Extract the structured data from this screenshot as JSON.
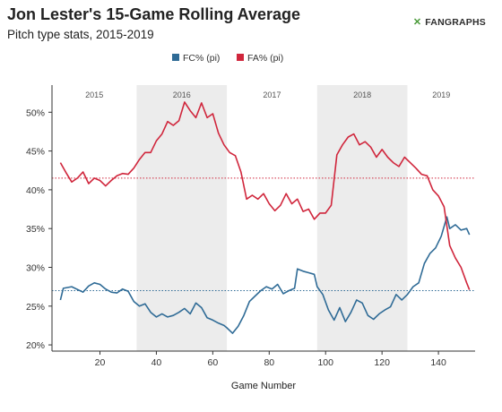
{
  "header": {
    "title": "Jon Lester's 15-Game Rolling Average",
    "subtitle": "Pitch type stats, 2015-2019",
    "logo_mark": "✕",
    "logo_prefix": "",
    "logo_text": "FANGRAPHS"
  },
  "chart_data": {
    "type": "line",
    "title": "Jon Lester's 15-Game Rolling Average",
    "subtitle": "Pitch type stats, 2015-2019",
    "xlabel": "Game Number",
    "ylabel": "",
    "xlim": [
      3,
      153
    ],
    "ylim": [
      19.2,
      53.5
    ],
    "x_ticks": [
      20,
      40,
      60,
      80,
      100,
      120,
      140
    ],
    "y_ticks": [
      20,
      25,
      30,
      35,
      40,
      45,
      50
    ],
    "y_tick_format": "percent",
    "grid": false,
    "legend_position": "top-center",
    "seasons": [
      {
        "label": "2015",
        "start": 3,
        "end": 33,
        "shaded": false
      },
      {
        "label": "2016",
        "start": 33,
        "end": 65,
        "shaded": true
      },
      {
        "label": "2017",
        "start": 65,
        "end": 97,
        "shaded": false
      },
      {
        "label": "2018",
        "start": 97,
        "end": 129,
        "shaded": true
      },
      {
        "label": "2019",
        "start": 129,
        "end": 153,
        "shaded": false
      }
    ],
    "reference_lines": [
      {
        "series": "FA% (pi)",
        "value": 41.5,
        "color": "#d0263c"
      },
      {
        "series": "FC% (pi)",
        "value": 27.0,
        "color": "#2f6b96"
      }
    ],
    "series": [
      {
        "name": "FC% (pi)",
        "color": "#2f6b96",
        "x": [
          6,
          7,
          10,
          14,
          16,
          18,
          20,
          22,
          24,
          26,
          28,
          30,
          32,
          34,
          36,
          38,
          40,
          42,
          44,
          46,
          48,
          50,
          52,
          54,
          56,
          58,
          60,
          62,
          64,
          65,
          67,
          69,
          71,
          73,
          75,
          77,
          79,
          81,
          83,
          85,
          87,
          89,
          90,
          92,
          94,
          96,
          97,
          99,
          101,
          103,
          105,
          107,
          109,
          111,
          113,
          115,
          117,
          119,
          121,
          123,
          125,
          127,
          129,
          131,
          133,
          135,
          137,
          139,
          141,
          143,
          144,
          146,
          148,
          150,
          151
        ],
        "values": [
          25.8,
          27.3,
          27.5,
          26.8,
          27.6,
          28.0,
          27.8,
          27.2,
          26.8,
          26.7,
          27.2,
          26.9,
          25.6,
          25.0,
          25.3,
          24.2,
          23.6,
          24.0,
          23.6,
          23.8,
          24.2,
          24.7,
          24.0,
          25.4,
          24.8,
          23.5,
          23.2,
          22.8,
          22.5,
          22.2,
          21.5,
          22.4,
          23.8,
          25.6,
          26.3,
          27.0,
          27.5,
          27.2,
          27.8,
          26.6,
          27.0,
          27.3,
          29.8,
          29.5,
          29.3,
          29.1,
          27.5,
          26.5,
          24.5,
          23.2,
          24.8,
          23.0,
          24.2,
          25.8,
          25.4,
          23.8,
          23.3,
          24.0,
          24.5,
          24.9,
          26.5,
          25.8,
          26.5,
          27.5,
          28.0,
          30.5,
          31.8,
          32.5,
          34.0,
          36.5,
          35.0,
          35.5,
          34.8,
          35.0,
          34.2
        ]
      },
      {
        "name": "FA% (pi)",
        "color": "#d0263c",
        "x": [
          6,
          8,
          10,
          12,
          14,
          16,
          18,
          20,
          22,
          24,
          26,
          28,
          30,
          32,
          34,
          36,
          38,
          40,
          42,
          44,
          46,
          48,
          50,
          52,
          54,
          56,
          58,
          60,
          62,
          64,
          66,
          68,
          70,
          72,
          74,
          76,
          78,
          80,
          82,
          84,
          86,
          88,
          90,
          92,
          94,
          96,
          98,
          100,
          102,
          104,
          106,
          108,
          110,
          112,
          114,
          116,
          118,
          120,
          122,
          124,
          126,
          128,
          130,
          132,
          134,
          136,
          138,
          140,
          142,
          144,
          146,
          148,
          150,
          151
        ],
        "values": [
          43.5,
          42.2,
          41.0,
          41.5,
          42.3,
          40.8,
          41.5,
          41.2,
          40.5,
          41.2,
          41.8,
          42.1,
          42.0,
          42.8,
          43.9,
          44.8,
          44.8,
          46.3,
          47.2,
          48.8,
          48.3,
          48.9,
          51.3,
          50.2,
          49.3,
          51.2,
          49.3,
          49.8,
          47.3,
          45.8,
          44.8,
          44.4,
          42.3,
          38.8,
          39.3,
          38.8,
          39.5,
          38.2,
          37.3,
          38.0,
          39.5,
          38.2,
          38.8,
          37.2,
          37.5,
          36.2,
          37.0,
          37.0,
          38.0,
          44.5,
          45.8,
          46.8,
          47.2,
          45.8,
          46.2,
          45.5,
          44.2,
          45.2,
          44.2,
          43.5,
          43.0,
          44.2,
          43.5,
          42.8,
          42.0,
          41.8,
          40.0,
          39.2,
          37.8,
          32.8,
          31.2,
          30.0,
          28.0,
          27.1
        ]
      }
    ]
  }
}
